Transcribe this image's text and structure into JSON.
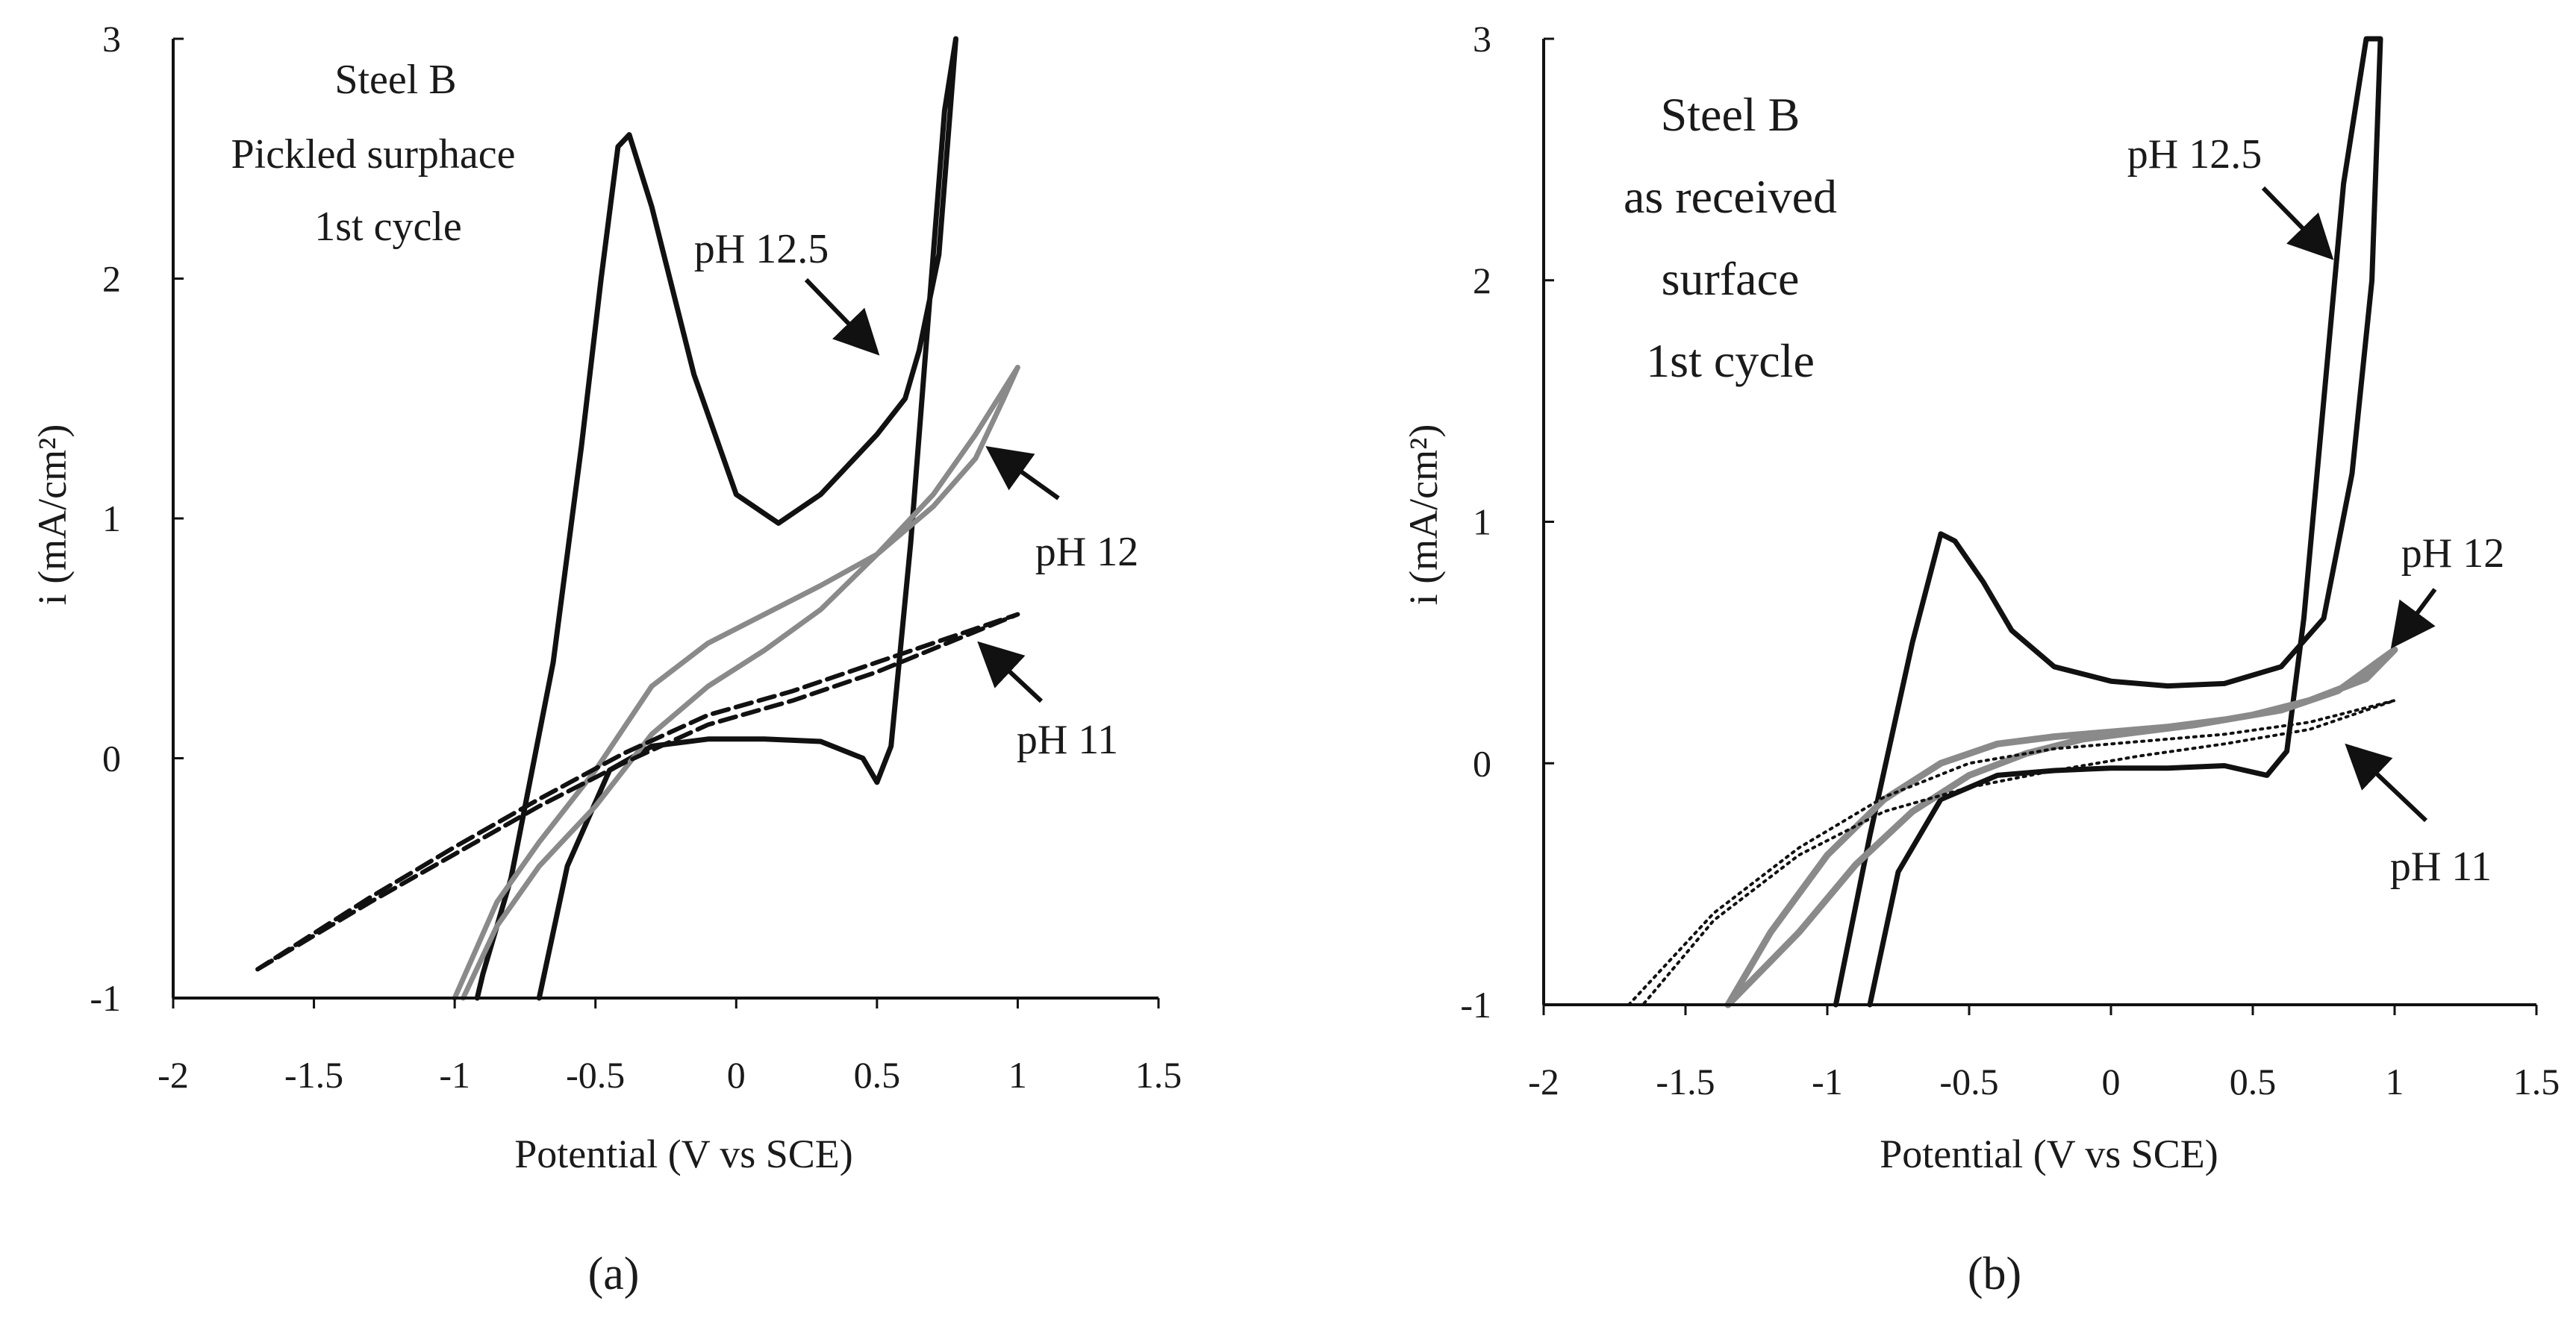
{
  "chart_data": [
    {
      "type": "line",
      "panel_label": "(a)",
      "xlabel": "Potential (V vs SCE)",
      "ylabel": "i (mA/cm²)",
      "xlim": [
        -2,
        1.5
      ],
      "ylim": [
        -1,
        3
      ],
      "xticks": [
        "-2",
        "-1.5",
        "-1",
        "-0.5",
        "0",
        "0.5",
        "1",
        "1.5"
      ],
      "yticks": [
        "-1",
        "0",
        "1",
        "2",
        "3"
      ],
      "annotation": [
        "Steel B",
        "Pickled surphace",
        "1st cycle"
      ],
      "series": [
        {
          "name": "pH 12.5",
          "color": "#111111",
          "dash": "solid",
          "width": 7,
          "x": [
            -0.7,
            -0.6,
            -0.45,
            -0.3,
            -0.1,
            0.1,
            0.3,
            0.45,
            0.5,
            0.55,
            0.62,
            0.68,
            0.74,
            0.78,
            0.72,
            0.65,
            0.6,
            0.5,
            0.3,
            0.15,
            0.0,
            -0.15,
            -0.3,
            -0.38,
            -0.42,
            -0.48,
            -0.55,
            -0.65,
            -0.8,
            -0.9,
            -0.92
          ],
          "y": [
            -1.0,
            -0.45,
            -0.05,
            0.05,
            0.08,
            0.08,
            0.07,
            0.0,
            -0.1,
            0.05,
            0.9,
            1.8,
            2.7,
            3.0,
            2.1,
            1.7,
            1.5,
            1.35,
            1.1,
            0.98,
            1.1,
            1.6,
            2.3,
            2.6,
            2.55,
            2.0,
            1.3,
            0.4,
            -0.5,
            -0.9,
            -1.0
          ]
        },
        {
          "name": "pH 12",
          "color": "#8a8a8a",
          "dash": "solid",
          "width": 7,
          "x": [
            -0.97,
            -0.85,
            -0.7,
            -0.5,
            -0.3,
            -0.1,
            0.1,
            0.3,
            0.5,
            0.7,
            0.85,
            1.0,
            0.95,
            0.85,
            0.7,
            0.5,
            0.3,
            0.1,
            -0.1,
            -0.3,
            -0.5,
            -0.7,
            -0.85,
            -1.0
          ],
          "y": [
            -1.0,
            -0.7,
            -0.45,
            -0.2,
            0.1,
            0.3,
            0.45,
            0.62,
            0.85,
            1.1,
            1.35,
            1.63,
            1.5,
            1.25,
            1.05,
            0.85,
            0.72,
            0.6,
            0.48,
            0.3,
            -0.05,
            -0.35,
            -0.6,
            -1.0
          ]
        },
        {
          "name": "pH 11",
          "color": "#111111",
          "dash": "dashed",
          "width": 6,
          "x": [
            -1.7,
            -1.3,
            -1.0,
            -0.7,
            -0.4,
            -0.1,
            0.2,
            0.5,
            0.75,
            1.0,
            0.8,
            0.5,
            0.2,
            -0.1,
            -0.4,
            -0.7,
            -1.0,
            -1.3,
            -1.7
          ],
          "y": [
            -0.88,
            -0.6,
            -0.4,
            -0.2,
            -0.02,
            0.14,
            0.24,
            0.36,
            0.48,
            0.6,
            0.52,
            0.4,
            0.28,
            0.18,
            0.02,
            -0.17,
            -0.37,
            -0.58,
            -0.88
          ]
        }
      ],
      "curve_labels": [
        "pH 12.5",
        "pH 12",
        "pH 11"
      ]
    },
    {
      "type": "line",
      "panel_label": "(b)",
      "xlabel": "Potential (V vs SCE)",
      "ylabel": "i (mA/cm²)",
      "xlim": [
        -2,
        1.5
      ],
      "ylim": [
        -1,
        3
      ],
      "xticks": [
        "-2",
        "-1.5",
        "-1",
        "-0.5",
        "0",
        "0.5",
        "1",
        "1.5"
      ],
      "yticks": [
        "-1",
        "0",
        "1",
        "2",
        "3"
      ],
      "annotation": [
        "Steel B",
        "as received",
        "surface",
        "1st cycle"
      ],
      "series": [
        {
          "name": "pH 12.5",
          "color": "#111111",
          "dash": "solid",
          "width": 7,
          "x": [
            -0.85,
            -0.75,
            -0.6,
            -0.4,
            -0.2,
            0.0,
            0.2,
            0.4,
            0.55,
            0.62,
            0.68,
            0.75,
            0.82,
            0.9,
            0.95,
            0.92,
            0.85,
            0.75,
            0.6,
            0.4,
            0.2,
            0.0,
            -0.2,
            -0.35,
            -0.45,
            -0.55,
            -0.6,
            -0.7,
            -0.85,
            -0.97
          ],
          "y": [
            -1.0,
            -0.45,
            -0.15,
            -0.05,
            -0.03,
            -0.02,
            -0.02,
            -0.01,
            -0.05,
            0.05,
            0.6,
            1.5,
            2.4,
            3.0,
            3.0,
            2.0,
            1.2,
            0.6,
            0.4,
            0.33,
            0.32,
            0.34,
            0.4,
            0.55,
            0.75,
            0.92,
            0.95,
            0.5,
            -0.3,
            -1.0
          ]
        },
        {
          "name": "pH 12",
          "color": "#8a8a8a",
          "dash": "solid",
          "width": 9,
          "x": [
            -1.35,
            -1.2,
            -1.0,
            -0.8,
            -0.6,
            -0.4,
            -0.2,
            0.0,
            0.2,
            0.4,
            0.6,
            0.8,
            1.0,
            0.9,
            0.7,
            0.5,
            0.3,
            0.1,
            -0.1,
            -0.3,
            -0.5,
            -0.7,
            -0.9,
            -1.1,
            -1.35
          ],
          "y": [
            -1.0,
            -0.7,
            -0.38,
            -0.15,
            0.0,
            0.08,
            0.11,
            0.13,
            0.15,
            0.18,
            0.22,
            0.3,
            0.47,
            0.35,
            0.26,
            0.2,
            0.16,
            0.13,
            0.1,
            0.04,
            -0.05,
            -0.2,
            -0.42,
            -0.7,
            -1.0
          ]
        },
        {
          "name": "pH 11",
          "color": "#111111",
          "dash": "dotted",
          "width": 4,
          "x": [
            -1.7,
            -1.4,
            -1.1,
            -0.8,
            -0.5,
            -0.2,
            0.1,
            0.4,
            0.7,
            1.0,
            0.7,
            0.4,
            0.1,
            -0.2,
            -0.5,
            -0.8,
            -1.1,
            -1.4,
            -1.65
          ],
          "y": [
            -1.0,
            -0.62,
            -0.35,
            -0.14,
            0.0,
            0.06,
            0.09,
            0.12,
            0.17,
            0.26,
            0.14,
            0.08,
            0.03,
            -0.03,
            -0.1,
            -0.2,
            -0.38,
            -0.65,
            -1.0
          ]
        }
      ],
      "curve_labels": [
        "pH 12.5",
        "pH 12",
        "pH 11"
      ]
    }
  ]
}
